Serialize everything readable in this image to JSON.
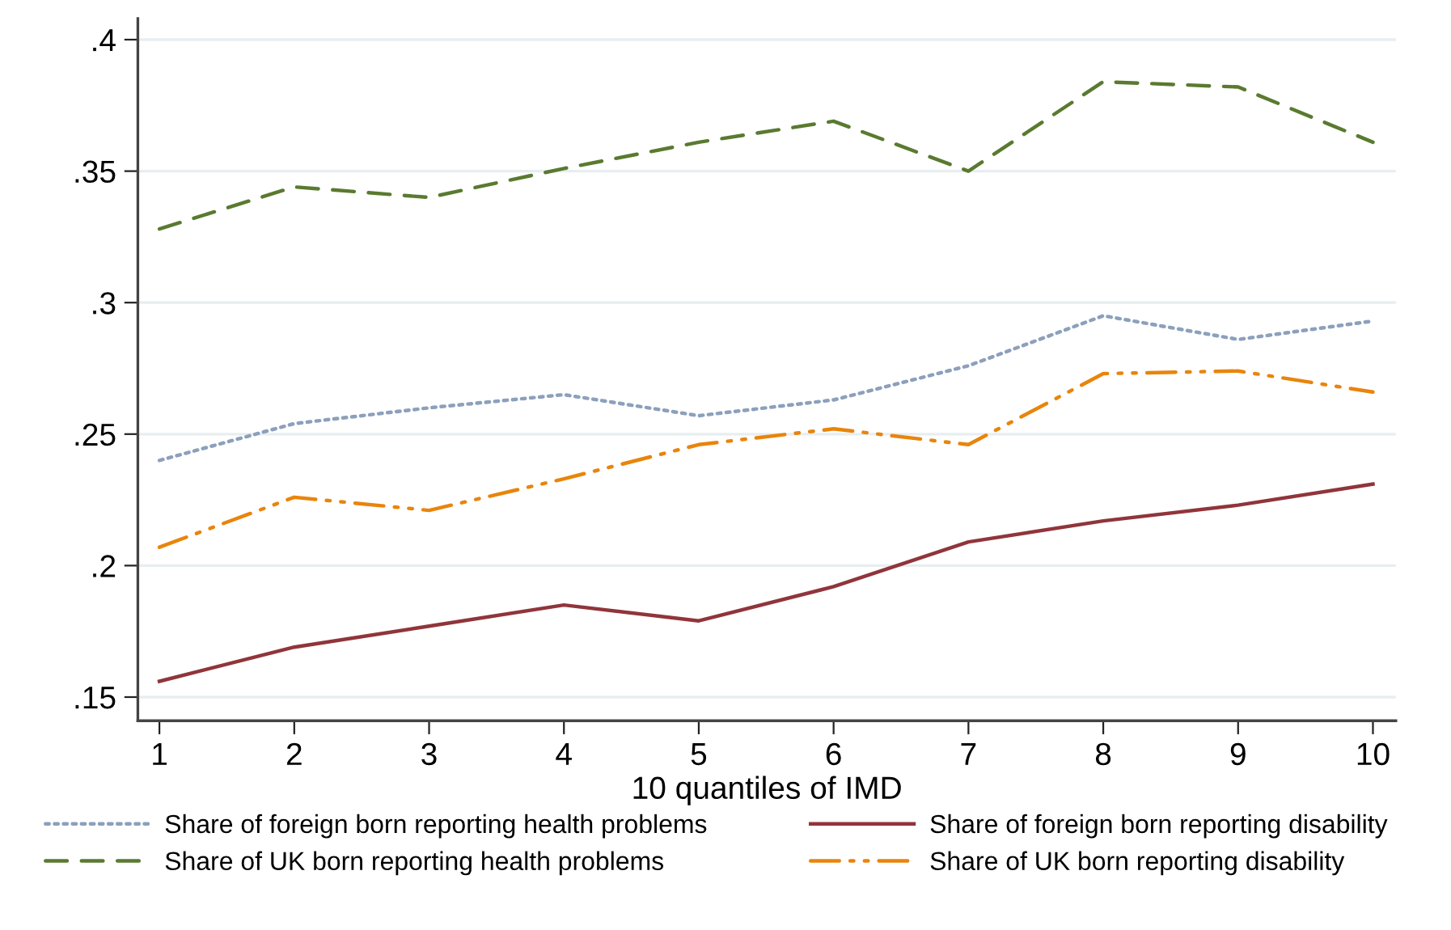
{
  "chart_data": {
    "type": "line",
    "xlabel": "10 quantiles of IMD",
    "x": [
      1,
      2,
      3,
      4,
      5,
      6,
      7,
      8,
      9,
      10
    ],
    "series": [
      {
        "name": "Share of foreign born reporting health problems",
        "color": "#8ca0bc",
        "line_style": "dotted",
        "values": [
          0.24,
          0.254,
          0.26,
          0.265,
          0.257,
          0.263,
          0.276,
          0.295,
          0.286,
          0.293
        ]
      },
      {
        "name": "Share of foreign born reporting disability",
        "color": "#90353b",
        "line_style": "solid",
        "values": [
          0.156,
          0.169,
          0.177,
          0.185,
          0.179,
          0.192,
          0.209,
          0.217,
          0.223,
          0.231
        ]
      },
      {
        "name": "Share of UK born reporting health problems",
        "color": "#5a7a30",
        "line_style": "dashed",
        "values": [
          0.328,
          0.344,
          0.34,
          0.351,
          0.361,
          0.369,
          0.35,
          0.384,
          0.382,
          0.361
        ]
      },
      {
        "name": "Share of UK born reporting disability",
        "color": "#e8850c",
        "line_style": "dashdot",
        "values": [
          0.207,
          0.226,
          0.221,
          0.233,
          0.246,
          0.252,
          0.246,
          0.273,
          0.274,
          0.266
        ]
      }
    ],
    "xlim": [
      0.84,
      10.17
    ],
    "ylim": [
      0.141,
      0.408
    ],
    "xticks": [
      1,
      2,
      3,
      4,
      5,
      6,
      7,
      8,
      9,
      10
    ],
    "yticks": [
      {
        "value": 0.15,
        "label": ".15"
      },
      {
        "value": 0.2,
        "label": ".2"
      },
      {
        "value": 0.25,
        "label": ".25"
      },
      {
        "value": 0.3,
        "label": ".3"
      },
      {
        "value": 0.35,
        "label": ".35"
      },
      {
        "value": 0.4,
        "label": ".4"
      }
    ],
    "grid": "y",
    "legend": "bottom",
    "marker": "none"
  }
}
